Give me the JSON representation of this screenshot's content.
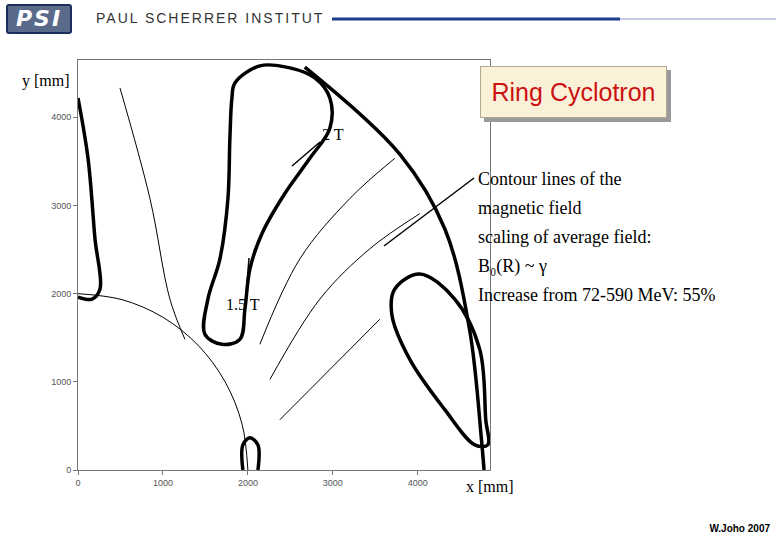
{
  "header": {
    "logo": "PSI",
    "institute": "PAUL SCHERRER INSTITUT"
  },
  "slide": {
    "title": "Ring Cyclotron",
    "text": [
      "Contour lines of the",
      "magnetic field",
      "scaling of average field:",
      "B₀(R)  ~ γ",
      "Increase from 72-590 MeV: 55%"
    ],
    "credit": "W.Joho 2007"
  },
  "chart_data": {
    "type": "line",
    "x_label": "x [mm]",
    "y_label": "y [mm]",
    "annotations": [
      "2 T",
      "1.5 T"
    ],
    "color": "#000000",
    "grid": false,
    "xlim": [
      0,
      4850
    ],
    "ylim": [
      0,
      4650
    ],
    "xticks": [
      0,
      1000,
      2000,
      3000,
      4000
    ],
    "yticks": [
      0,
      1000,
      2000,
      3000,
      4000
    ],
    "series": [
      {
        "x": [
          1847,
          2141,
          2494,
          2788,
          2965,
          2965,
          2729,
          2435,
          2165,
          2024,
          1965,
          1906,
          1694,
          1494,
          1529,
          1671,
          1765,
          1788,
          1812,
          1847
        ],
        "y": [
          4390,
          4584,
          4561,
          4447,
          4219,
          3877,
          3535,
          3136,
          2680,
          2281,
          1824,
          1482,
          1425,
          1539,
          1938,
          2395,
          3079,
          3763,
          4219,
          4390
        ]
      },
      {
        "x": [
          4024,
          4435,
          4729,
          4800,
          4824,
          4671,
          4318,
          3906,
          3694,
          3729,
          4024
        ],
        "y": [
          2223,
          1938,
          1368,
          570,
          285,
          285,
          684,
          1254,
          1767,
          2052,
          2223
        ]
      },
      {
        "x": [
          0,
          118,
          200,
          259,
          165,
          0
        ],
        "y": [
          4219,
          3535,
          2623,
          2052,
          1938,
          1961
        ]
      },
      {
        "x": [
          1941,
          1941,
          2024,
          2118,
          2118
        ],
        "y": [
          0,
          285,
          365,
          285,
          0
        ]
      },
      {
        "x": [
          2000,
          1932,
          1732,
          1414,
          1000,
          518,
          0
        ],
        "y": [
          0,
          518,
          1000,
          1414,
          1732,
          1932,
          2000
        ]
      },
      {
        "x": [
          2670,
          3790,
          4320,
          4610,
          4750,
          4780
        ],
        "y": [
          4570,
          3580,
          2730,
          1590,
          340,
          0
        ]
      },
      {
        "x": [
          2141,
          2612,
          3200,
          3729
        ],
        "y": [
          1425,
          2395,
          3079,
          3535
        ]
      },
      {
        "x": [
          2259,
          2847,
          3435,
          4024
        ],
        "y": [
          1026,
          1938,
          2509,
          2908
        ]
      },
      {
        "x": [
          2376,
          2965,
          3553
        ],
        "y": [
          570,
          1140,
          1710
        ]
      },
      {
        "x": [
          494,
          847,
          1082,
          1259
        ],
        "y": [
          4333,
          3079,
          1938,
          1482
        ]
      }
    ]
  }
}
